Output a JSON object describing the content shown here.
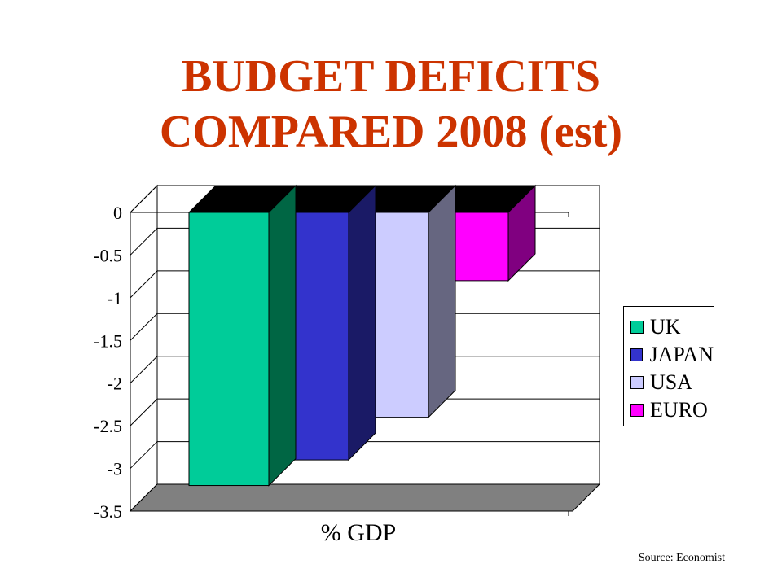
{
  "title_lines": [
    "BUDGET DEFICITS",
    "COMPARED 2008 (est)"
  ],
  "source": "Source: Economist",
  "chart_data": {
    "type": "bar",
    "title": "BUDGET DEFICITS COMPARED 2008 (est)",
    "xlabel": "% GDP",
    "ylabel": "",
    "ylim": [
      -3.5,
      0
    ],
    "yticks": [
      0,
      -0.5,
      -1,
      -1.5,
      -2,
      -2.5,
      -3,
      -3.5
    ],
    "ytick_labels": [
      "0",
      "-0.5",
      "-1",
      "-1.5",
      "-2",
      "-2.5",
      "-3",
      "-3.5"
    ],
    "grid": true,
    "legend_position": "right",
    "categories": [
      "% GDP"
    ],
    "series": [
      {
        "name": "UK",
        "values": [
          -3.2
        ],
        "color": "#00cc99",
        "side_color": "#006644"
      },
      {
        "name": "JAPAN",
        "values": [
          -2.9
        ],
        "color": "#3333cc",
        "side_color": "#1a1a66"
      },
      {
        "name": "USA",
        "values": [
          -2.4
        ],
        "color": "#ccccff",
        "side_color": "#666680"
      },
      {
        "name": "EURO",
        "values": [
          -0.8
        ],
        "color": "#ff00ff",
        "side_color": "#800080"
      }
    ]
  }
}
